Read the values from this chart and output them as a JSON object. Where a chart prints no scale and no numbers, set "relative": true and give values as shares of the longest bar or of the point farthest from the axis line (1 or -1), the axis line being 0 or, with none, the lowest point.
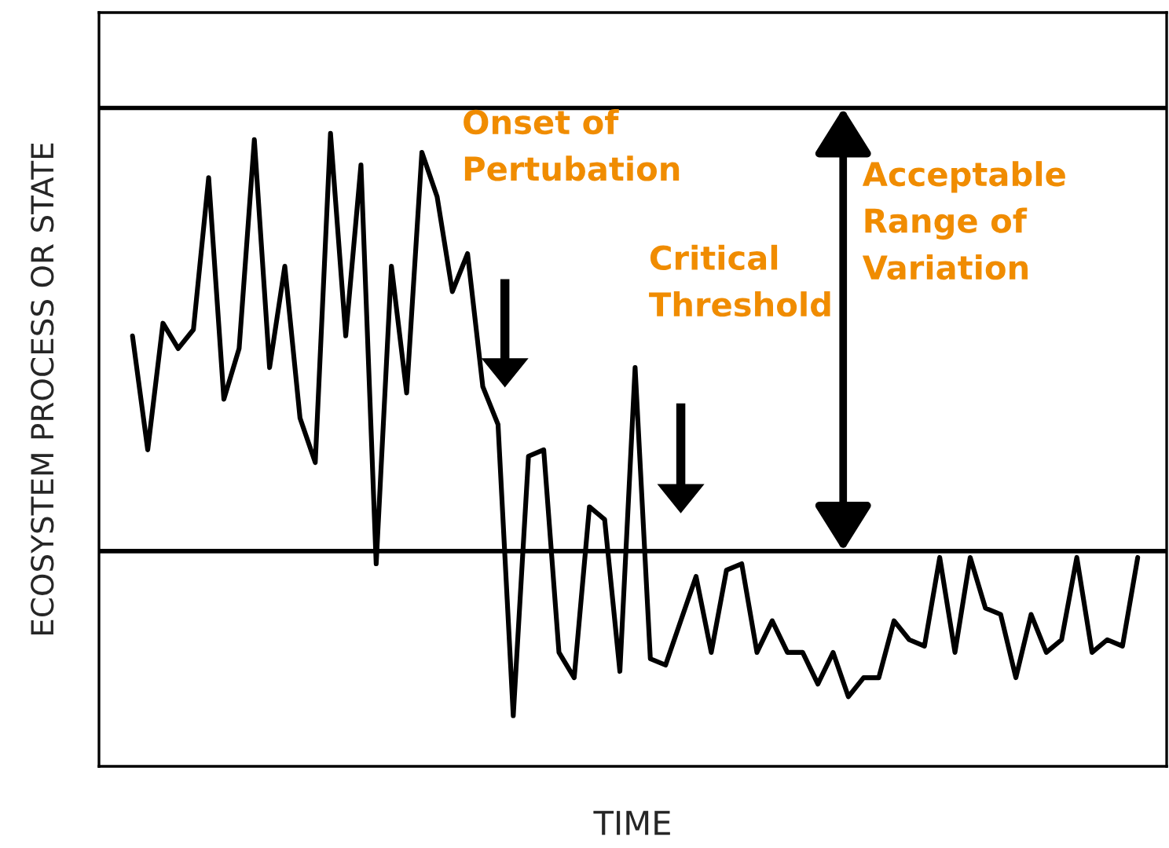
{
  "chart_data": {
    "type": "line",
    "relative": true,
    "xlabel": "TIME",
    "ylabel": "ECOSYSTEM PROCESS OR STATE",
    "categories": [
      null,
      null,
      null,
      null,
      null,
      null,
      null,
      null,
      null,
      null,
      null,
      null,
      null,
      null,
      null,
      null,
      null,
      null,
      null,
      null,
      null,
      null,
      null,
      null,
      null,
      null,
      null,
      null,
      null,
      null,
      null,
      null,
      null,
      null,
      null,
      null,
      null,
      null,
      null,
      null,
      null,
      null,
      null,
      null,
      null,
      null,
      null,
      null,
      null,
      null,
      null,
      null,
      null,
      null,
      null,
      null,
      null,
      null,
      null,
      null,
      null,
      null,
      null,
      null,
      null,
      null,
      null
    ],
    "series": [
      {
        "color": "#000000",
        "values": [
          0.68,
          0.5,
          0.7,
          0.66,
          0.69,
          0.93,
          0.58,
          0.66,
          0.99,
          0.63,
          0.79,
          0.55,
          0.48,
          1.0,
          0.68,
          0.95,
          0.32,
          0.79,
          0.59,
          0.97,
          0.9,
          0.75,
          0.81,
          0.6,
          0.54,
          0.08,
          0.49,
          0.5,
          0.18,
          0.14,
          0.41,
          0.39,
          0.15,
          0.63,
          0.17,
          0.16,
          0.23,
          0.3,
          0.18,
          0.31,
          0.32,
          0.18,
          0.23,
          0.18,
          0.18,
          0.13,
          0.18,
          0.11,
          0.14,
          0.14,
          0.23,
          0.2,
          0.19,
          0.33,
          0.18,
          0.33,
          0.25,
          0.24,
          0.14,
          0.24,
          0.18,
          0.2,
          0.33,
          0.18,
          0.2,
          0.19,
          0.33
        ]
      }
    ],
    "line_style": "solid",
    "ref_lines": [
      {
        "axis": "y",
        "value": 1.04,
        "color": "#000000"
      },
      {
        "axis": "y",
        "value": 0.34,
        "color": "#000000"
      }
    ],
    "annotations": [
      "Onset of\nPertubation",
      "Critical\nThreshold",
      "Acceptable\nRange of\nVariation"
    ]
  }
}
